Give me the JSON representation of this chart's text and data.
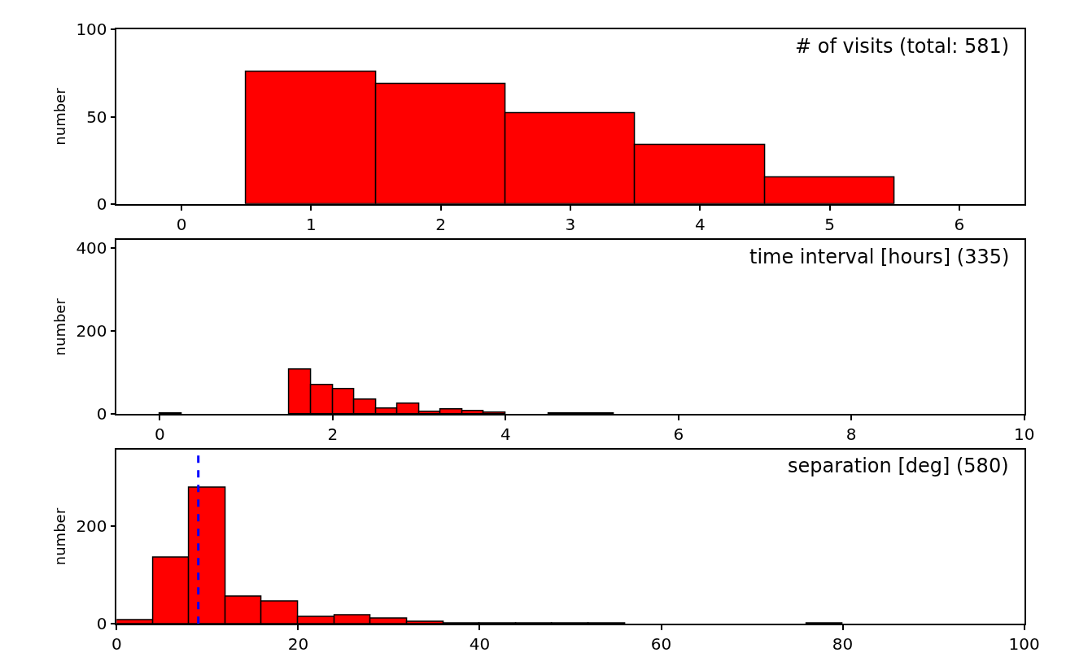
{
  "chart_data": [
    {
      "type": "histogram",
      "annotations": [
        "# of visits (total: 581)"
      ],
      "ylabel": "number",
      "bins": [
        -0.5,
        0.5,
        1.5,
        2.5,
        3.5,
        4.5,
        5.5,
        6.5
      ],
      "values": [
        0,
        76,
        69,
        52,
        34,
        15,
        0
      ],
      "color": "#ff0000",
      "xlim": [
        -0.5,
        6.5
      ],
      "xticks": [
        0,
        1,
        2,
        3,
        4,
        5,
        6
      ],
      "ylim": [
        0,
        100
      ],
      "yticks": [
        0,
        50,
        100
      ]
    },
    {
      "type": "histogram",
      "annotations": [
        "time interval [hours] (335)"
      ],
      "ylabel": "number",
      "bins": [
        0,
        0.25,
        0.5,
        0.75,
        1,
        1.25,
        1.5,
        1.75,
        2,
        2.25,
        2.5,
        2.75,
        3,
        3.25,
        3.5,
        3.75,
        4,
        4.25,
        4.5,
        4.75,
        5,
        5.25,
        5.5,
        5.75,
        6,
        6.25,
        6.5,
        6.75,
        7,
        7.25,
        7.5,
        7.75,
        8,
        8.25,
        8.5,
        8.75,
        9,
        9.25,
        9.5,
        9.75,
        10
      ],
      "values": [
        1,
        0,
        0,
        0,
        0,
        0,
        107,
        70,
        59,
        35,
        13,
        24,
        6,
        10,
        8,
        3,
        0,
        0,
        1,
        1,
        1,
        0,
        0,
        0,
        0,
        0,
        0,
        0,
        0,
        0,
        0,
        0,
        0,
        0,
        0,
        0,
        0,
        0,
        0,
        0
      ],
      "color": "#ff0000",
      "xlim": [
        -0.5,
        10
      ],
      "xticks": [
        0,
        2,
        4,
        6,
        8,
        10
      ],
      "ylim": [
        0,
        418
      ],
      "yticks": [
        0,
        200,
        400
      ]
    },
    {
      "type": "histogram",
      "annotations": [
        "separation [deg] (580)"
      ],
      "ylabel": "number",
      "bins": [
        0,
        4,
        8,
        12,
        16,
        20,
        24,
        28,
        32,
        36,
        40,
        44,
        48,
        52,
        56,
        60,
        64,
        68,
        72,
        76,
        80,
        84,
        88,
        92,
        96,
        100
      ],
      "values": [
        8,
        136,
        279,
        56,
        46,
        15,
        18,
        11,
        5,
        1,
        1,
        1,
        1,
        1,
        0,
        0,
        0,
        0,
        0,
        1,
        0,
        0,
        0,
        0,
        0
      ],
      "color": "#ff0000",
      "xlim": [
        0,
        100
      ],
      "xticks": [
        0,
        20,
        40,
        60,
        80,
        100
      ],
      "ylim": [
        0,
        358
      ],
      "yticks": [
        0,
        200
      ],
      "ref_lines": [
        {
          "axis": "x",
          "value": 9,
          "color": "#0000ff",
          "line_style": "dashed"
        }
      ]
    }
  ]
}
